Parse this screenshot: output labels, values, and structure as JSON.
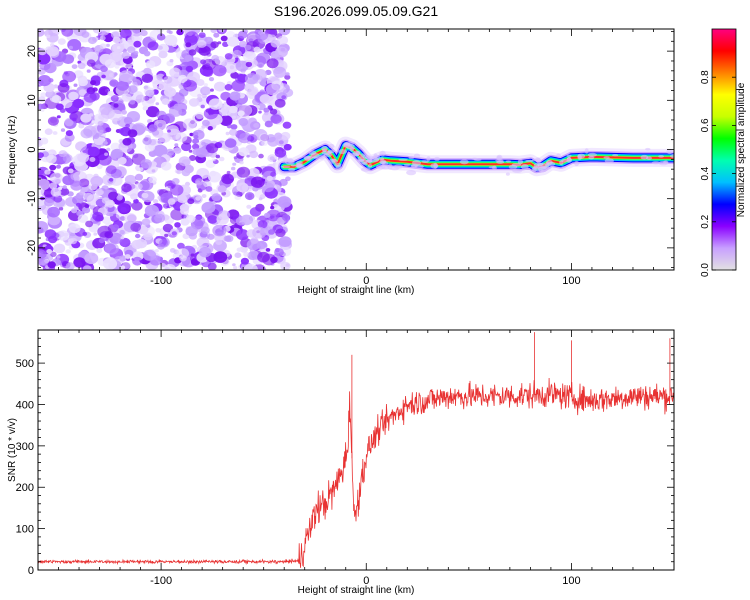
{
  "title": "S196.2026.099.05.09.G21",
  "chart_data": [
    {
      "type": "heatmap",
      "xlabel": "Height of straight line (km)",
      "ylabel": "Frequency (Hz)",
      "xlim": [
        -160,
        150
      ],
      "ylim": [
        -24.5,
        24.5
      ],
      "x_ticks": [
        -100,
        0,
        100
      ],
      "y_ticks": [
        -20,
        -10,
        0,
        10,
        20
      ],
      "noise_region_x": [
        -160,
        -40
      ],
      "ridge": {
        "description": "dominant frequency trace",
        "x": [
          -40,
          -35,
          -30,
          -25,
          -20,
          -17,
          -14,
          -10,
          -7,
          -4,
          -1,
          2,
          5,
          8,
          12,
          20,
          30,
          40,
          60,
          70,
          75,
          80,
          83,
          86,
          90,
          95,
          100,
          105,
          110,
          120,
          130,
          140,
          150
        ],
        "freq": [
          -3.5,
          -3.5,
          -2.5,
          -1,
          0,
          -1.2,
          -3,
          0.8,
          0.3,
          -0.8,
          -2.2,
          -3.2,
          -2.6,
          -2.1,
          -2.3,
          -2.5,
          -3,
          -3,
          -3,
          -3,
          -3.1,
          -2.8,
          -3.6,
          -3.4,
          -2.3,
          -2.7,
          -1.7,
          -1.6,
          -1.5,
          -1.6,
          -1.7,
          -1.7,
          -1.7
        ]
      },
      "colorbar": {
        "label": "Normalized spectral amplitude",
        "range": [
          0,
          1
        ],
        "ticks": [
          "0.0",
          "0.2",
          "0.4",
          "0.6",
          "0.8"
        ],
        "colors": [
          "#e2e2e2",
          "#c8a0ff",
          "#8a00ff",
          "#0000ff",
          "#00bfff",
          "#00ffb0",
          "#00ff00",
          "#c8ff00",
          "#ffff00",
          "#ff8000",
          "#ff0000",
          "#ff0080"
        ]
      }
    },
    {
      "type": "line",
      "xlabel": "Height of straight line (km)",
      "ylabel": "SNR (10 * v/v)",
      "xlim": [
        -160,
        150
      ],
      "ylim": [
        0,
        580
      ],
      "x_ticks": [
        -100,
        0,
        100
      ],
      "y_ticks": [
        0,
        100,
        200,
        300,
        400,
        500
      ],
      "line_color": "#e83232",
      "envelope": {
        "description": "approximate running mean of SNR series (noisy trace around it)",
        "x": [
          -160,
          -40,
          -33,
          -28,
          -24,
          -20,
          -15,
          -11,
          -9,
          -8,
          -6,
          -3,
          0,
          5,
          10,
          20,
          30,
          40,
          50,
          70,
          90,
          110,
          130,
          150
        ],
        "mean": [
          20,
          20,
          22,
          90,
          150,
          160,
          200,
          250,
          300,
          420,
          120,
          200,
          280,
          330,
          360,
          400,
          410,
          420,
          420,
          420,
          425,
          410,
          420,
          420
        ]
      },
      "peaks": [
        {
          "x": -7,
          "y": 520
        },
        {
          "x": 82,
          "y": 575
        },
        {
          "x": 100,
          "y": 555
        },
        {
          "x": 148,
          "y": 560
        }
      ]
    }
  ]
}
